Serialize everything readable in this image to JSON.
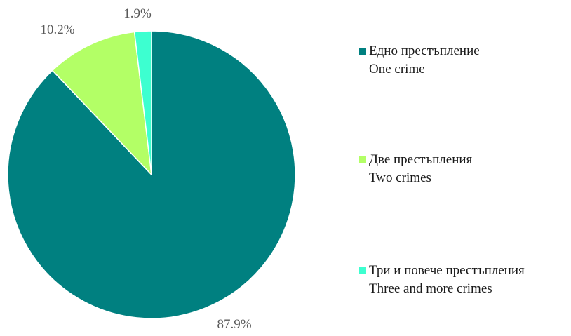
{
  "chart_data": {
    "type": "pie",
    "slices": [
      {
        "label_bg": "Едно престъпление",
        "label_en": "One crime",
        "value": 87.9,
        "value_label": "87.9%",
        "color": "#008080"
      },
      {
        "label_bg": "Две престъпления",
        "label_en": "Two crimes",
        "value": 10.2,
        "value_label": "10.2%",
        "color": "#B3FF66"
      },
      {
        "label_bg": "Три и повече престъпления",
        "label_en": "Three and more crimes",
        "value": 1.9,
        "value_label": "1.9%",
        "color": "#3DFFD0"
      }
    ],
    "start_angle": "12 o'clock",
    "direction": "clockwise",
    "legend_position": "right"
  }
}
